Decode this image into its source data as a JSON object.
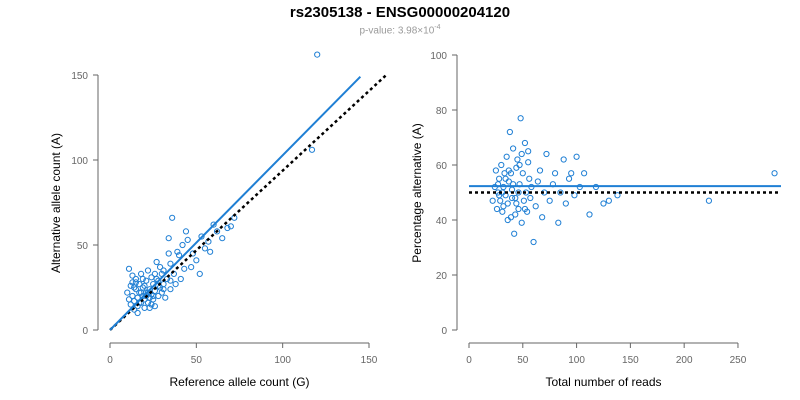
{
  "page": {
    "title": "rs2305138 - ENSG00000204120",
    "subtitle_prefix": "p-value: 3.98×10",
    "subtitle_exponent": "-4"
  },
  "chart_data": [
    {
      "type": "scatter",
      "xlabel": "Reference allele count (G)",
      "ylabel": "Alternative allele count (A)",
      "xlim": [
        0,
        150
      ],
      "ylim": [
        0,
        150
      ],
      "xticks": [
        0,
        50,
        100,
        150
      ],
      "yticks": [
        0,
        50,
        100,
        150
      ],
      "grid": false,
      "point_color": "#1f7fd4",
      "fit_line": {
        "x": [
          0,
          145
        ],
        "y": [
          0,
          149
        ],
        "color": "#1f7fd4",
        "style": "solid"
      },
      "reference_line": {
        "x": [
          0,
          160
        ],
        "y": [
          0,
          150
        ],
        "color": "#000000",
        "style": "dotted"
      },
      "points": [
        [
          10,
          22
        ],
        [
          11,
          18
        ],
        [
          12,
          15
        ],
        [
          12,
          26
        ],
        [
          13,
          20
        ],
        [
          13,
          28
        ],
        [
          14,
          12
        ],
        [
          14,
          17
        ],
        [
          15,
          24
        ],
        [
          15,
          30
        ],
        [
          16,
          14
        ],
        [
          16,
          19
        ],
        [
          17,
          22
        ],
        [
          17,
          27
        ],
        [
          18,
          16
        ],
        [
          18,
          33
        ],
        [
          19,
          20
        ],
        [
          19,
          25
        ],
        [
          20,
          13
        ],
        [
          20,
          18
        ],
        [
          21,
          22
        ],
        [
          21,
          29
        ],
        [
          22,
          16
        ],
        [
          22,
          35
        ],
        [
          23,
          19
        ],
        [
          23,
          24
        ],
        [
          24,
          21
        ],
        [
          24,
          31
        ],
        [
          25,
          18
        ],
        [
          25,
          27
        ],
        [
          26,
          14
        ],
        [
          26,
          23
        ],
        [
          27,
          30
        ],
        [
          28,
          20
        ],
        [
          28,
          26
        ],
        [
          29,
          37
        ],
        [
          30,
          22
        ],
        [
          30,
          33
        ],
        [
          31,
          27
        ],
        [
          32,
          19
        ],
        [
          33,
          30
        ],
        [
          34,
          54
        ],
        [
          35,
          24
        ],
        [
          35,
          39
        ],
        [
          36,
          66
        ],
        [
          37,
          33
        ],
        [
          38,
          27
        ],
        [
          39,
          46
        ],
        [
          40,
          44
        ],
        [
          41,
          30
        ],
        [
          42,
          50
        ],
        [
          43,
          36
        ],
        [
          44,
          58
        ],
        [
          45,
          53
        ],
        [
          47,
          37
        ],
        [
          48,
          45
        ],
        [
          50,
          41
        ],
        [
          52,
          33
        ],
        [
          53,
          55
        ],
        [
          55,
          48
        ],
        [
          57,
          52
        ],
        [
          58,
          46
        ],
        [
          60,
          62
        ],
        [
          62,
          58
        ],
        [
          65,
          54
        ],
        [
          68,
          60
        ],
        [
          70,
          61
        ],
        [
          72,
          66
        ],
        [
          11,
          36
        ],
        [
          13,
          32
        ],
        [
          15,
          28
        ],
        [
          17,
          16
        ],
        [
          19,
          30
        ],
        [
          21,
          20
        ],
        [
          23,
          13
        ],
        [
          25,
          20
        ],
        [
          27,
          40
        ],
        [
          29,
          25
        ],
        [
          31,
          35
        ],
        [
          35,
          29
        ],
        [
          14,
          25
        ],
        [
          16,
          10
        ],
        [
          18,
          22
        ],
        [
          20,
          26
        ],
        [
          22,
          22
        ],
        [
          24,
          15
        ],
        [
          26,
          33
        ],
        [
          28,
          29
        ],
        [
          31,
          24
        ],
        [
          34,
          45
        ],
        [
          117,
          106
        ],
        [
          120,
          162
        ]
      ]
    },
    {
      "type": "scatter",
      "xlabel": "Total number of reads",
      "ylabel": "Percentage alternative (A)",
      "xlim": [
        0,
        290
      ],
      "ylim": [
        0,
        100
      ],
      "xticks": [
        0,
        50,
        100,
        150,
        200,
        250
      ],
      "yticks": [
        0,
        20,
        40,
        60,
        80,
        100
      ],
      "grid": false,
      "point_color": "#1f7fd4",
      "mean_line": {
        "y": 52.3,
        "color": "#1f7fd4",
        "style": "solid"
      },
      "reference_line": {
        "y": 50,
        "color": "#000000",
        "style": "dotted"
      },
      "points": [
        [
          22,
          47
        ],
        [
          24,
          52
        ],
        [
          25,
          58
        ],
        [
          26,
          44
        ],
        [
          27,
          50
        ],
        [
          28,
          55
        ],
        [
          29,
          47
        ],
        [
          30,
          60
        ],
        [
          31,
          43
        ],
        [
          32,
          52
        ],
        [
          33,
          57
        ],
        [
          34,
          49
        ],
        [
          35,
          63
        ],
        [
          36,
          46
        ],
        [
          37,
          54
        ],
        [
          38,
          72
        ],
        [
          39,
          41
        ],
        [
          40,
          51
        ],
        [
          41,
          66
        ],
        [
          42,
          35
        ],
        [
          43,
          48
        ],
        [
          44,
          59
        ],
        [
          45,
          62
        ],
        [
          46,
          44
        ],
        [
          47,
          53
        ],
        [
          48,
          77
        ],
        [
          49,
          39
        ],
        [
          50,
          57
        ],
        [
          51,
          47
        ],
        [
          52,
          68
        ],
        [
          53,
          50
        ],
        [
          54,
          43
        ],
        [
          55,
          61
        ],
        [
          56,
          55
        ],
        [
          57,
          48
        ],
        [
          58,
          52
        ],
        [
          60,
          32
        ],
        [
          62,
          45
        ],
        [
          64,
          54
        ],
        [
          66,
          58
        ],
        [
          68,
          41
        ],
        [
          70,
          50
        ],
        [
          72,
          64
        ],
        [
          75,
          47
        ],
        [
          78,
          53
        ],
        [
          80,
          57
        ],
        [
          83,
          39
        ],
        [
          85,
          50
        ],
        [
          88,
          62
        ],
        [
          90,
          46
        ],
        [
          93,
          55
        ],
        [
          95,
          57
        ],
        [
          98,
          49
        ],
        [
          100,
          63
        ],
        [
          103,
          52
        ],
        [
          107,
          57
        ],
        [
          112,
          42
        ],
        [
          118,
          52
        ],
        [
          125,
          46
        ],
        [
          130,
          47
        ],
        [
          138,
          49
        ],
        [
          223,
          47
        ],
        [
          284,
          57
        ],
        [
          27,
          53
        ],
        [
          31,
          50
        ],
        [
          34,
          55
        ],
        [
          36,
          40
        ],
        [
          39,
          57
        ],
        [
          41,
          53
        ],
        [
          44,
          46
        ],
        [
          46,
          50
        ],
        [
          49,
          64
        ],
        [
          52,
          44
        ],
        [
          55,
          65
        ],
        [
          28,
          49
        ],
        [
          32,
          45
        ],
        [
          37,
          58
        ],
        [
          40,
          48
        ],
        [
          43,
          42
        ],
        [
          47,
          60
        ]
      ]
    }
  ]
}
